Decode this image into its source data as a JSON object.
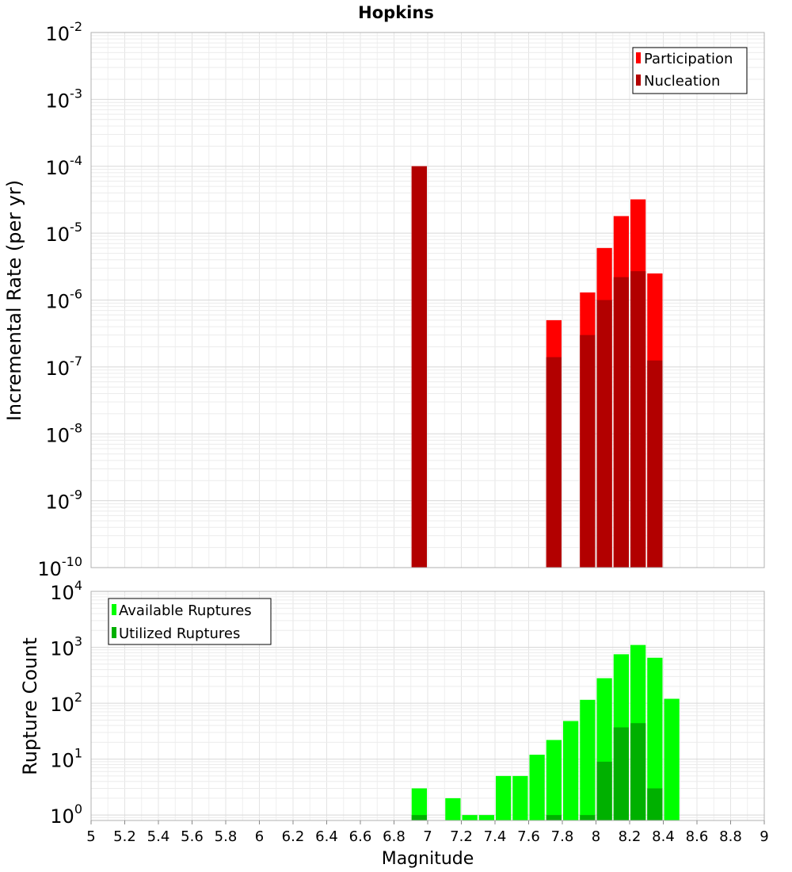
{
  "chart_data": [
    {
      "type": "bar",
      "title": "Hopkins",
      "xlabel": "",
      "ylabel": "Incremental Rate (per yr)",
      "yscale": "log",
      "ylim": [
        1e-10,
        0.01
      ],
      "xlim": [
        5,
        9
      ],
      "bin_width": 0.1,
      "ytick_labels": [
        {
          "base": "10",
          "exp": "-10"
        },
        {
          "base": "10",
          "exp": "-9"
        },
        {
          "base": "10",
          "exp": "-8"
        },
        {
          "base": "10",
          "exp": "-7"
        },
        {
          "base": "10",
          "exp": "-6"
        },
        {
          "base": "10",
          "exp": "-5"
        },
        {
          "base": "10",
          "exp": "-4"
        },
        {
          "base": "10",
          "exp": "-3"
        },
        {
          "base": "10",
          "exp": "-2"
        }
      ],
      "legend": {
        "position": "top-right",
        "entries": [
          "Participation",
          "Nucleation"
        ]
      },
      "series": [
        {
          "name": "Participation",
          "color": "#ff0000",
          "x": [
            6.95,
            7.75,
            7.95,
            8.05,
            8.15,
            8.25,
            8.35
          ],
          "values": [
            0.0001,
            5e-07,
            1.3e-06,
            6e-06,
            1.8e-05,
            3.2e-05,
            2.5e-06
          ]
        },
        {
          "name": "Nucleation",
          "color": "#b20000",
          "x": [
            6.95,
            7.75,
            7.95,
            8.05,
            8.15,
            8.25,
            8.35
          ],
          "values": [
            0.0001,
            1.4e-07,
            3e-07,
            1e-06,
            2.2e-06,
            2.7e-06,
            1.25e-07
          ]
        }
      ]
    },
    {
      "type": "bar",
      "title": "",
      "xlabel": "Magnitude",
      "ylabel": "Rupture Count",
      "yscale": "log",
      "ylim": [
        0.8,
        10000
      ],
      "xlim": [
        5,
        9
      ],
      "bin_width": 0.1,
      "ytick_labels": [
        {
          "base": "10",
          "exp": "0"
        },
        {
          "base": "10",
          "exp": "1"
        },
        {
          "base": "10",
          "exp": "2"
        },
        {
          "base": "10",
          "exp": "3"
        },
        {
          "base": "10",
          "exp": "4"
        }
      ],
      "xtick_labels": [
        "5",
        "5.2",
        "5.4",
        "5.6",
        "5.8",
        "6",
        "6.2",
        "6.4",
        "6.6",
        "6.8",
        "7",
        "7.2",
        "7.4",
        "7.6",
        "7.8",
        "8",
        "8.2",
        "8.4",
        "8.6",
        "8.8",
        "9"
      ],
      "legend": {
        "position": "top-left",
        "entries": [
          "Available Ruptures",
          "Utilized Ruptures"
        ]
      },
      "series": [
        {
          "name": "Available Ruptures",
          "color": "#00ff00",
          "x": [
            6.95,
            7.15,
            7.25,
            7.35,
            7.45,
            7.55,
            7.65,
            7.75,
            7.85,
            7.95,
            8.05,
            8.15,
            8.25,
            8.35,
            8.45
          ],
          "values": [
            3,
            2,
            1,
            1,
            5,
            5,
            12,
            22,
            48,
            115,
            280,
            750,
            1100,
            650,
            120
          ]
        },
        {
          "name": "Utilized Ruptures",
          "color": "#00b000",
          "x": [
            6.95,
            7.75,
            7.95,
            8.05,
            8.15,
            8.25,
            8.35
          ],
          "values": [
            1,
            1,
            1,
            9,
            37,
            44,
            3
          ]
        }
      ]
    }
  ]
}
